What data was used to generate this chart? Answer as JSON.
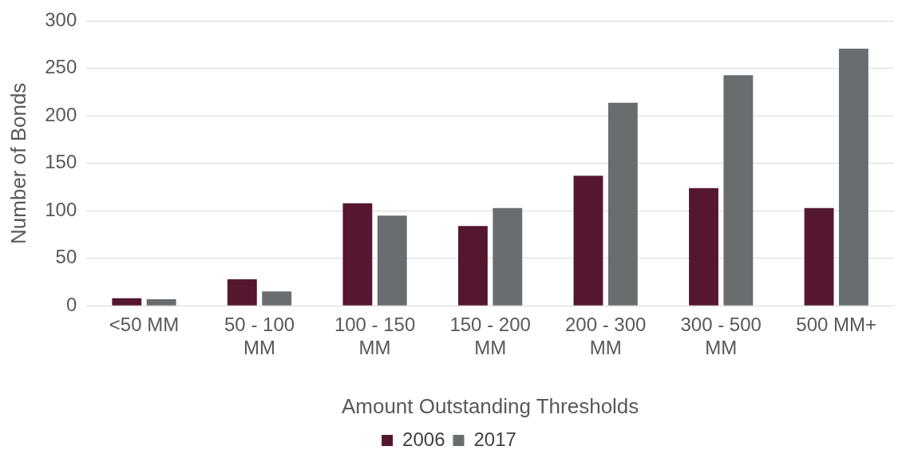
{
  "chart_data": {
    "type": "bar",
    "xlabel": "Amount Outstanding Thresholds",
    "ylabel": "Number of Bonds",
    "categories": [
      "<50 MM",
      "50 - 100 MM",
      "100 - 150 MM",
      "150 - 200 MM",
      "200 - 300 MM",
      "300 - 500 MM",
      "500 MM+"
    ],
    "series": [
      {
        "name": "2006",
        "color": "#54172f",
        "values": [
          8,
          28,
          108,
          84,
          137,
          124,
          103
        ]
      },
      {
        "name": "2017",
        "color": "#6a6d70",
        "values": [
          7,
          15,
          95,
          103,
          214,
          243,
          271
        ]
      }
    ],
    "ylim": [
      0,
      300
    ],
    "yticks": [
      0,
      50,
      100,
      150,
      200,
      250,
      300
    ],
    "grid": "y",
    "legend": "bottom"
  }
}
